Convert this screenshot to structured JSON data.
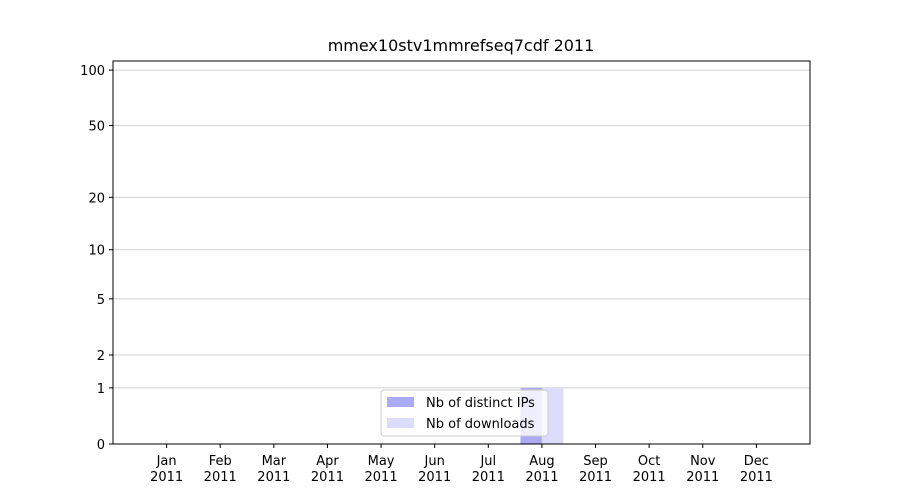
{
  "chart_data": {
    "type": "bar",
    "title": "mmex10stv1mmrefseq7cdf 2011",
    "categories": [
      "Jan 2011",
      "Feb 2011",
      "Mar 2011",
      "Apr 2011",
      "May 2011",
      "Jun 2011",
      "Jul 2011",
      "Aug 2011",
      "Sep 2011",
      "Oct 2011",
      "Nov 2011",
      "Dec 2011"
    ],
    "series": [
      {
        "name": "Nb of distinct IPs",
        "color": "#aaaaf5",
        "values": [
          0,
          0,
          0,
          0,
          0,
          0,
          0,
          1,
          0,
          0,
          0,
          0
        ]
      },
      {
        "name": "Nb of downloads",
        "color": "#dcdcfc",
        "values": [
          0,
          0,
          0,
          0,
          0,
          0,
          0,
          1,
          0,
          0,
          0,
          0
        ]
      }
    ],
    "yscale": "symlog",
    "ylim": [
      0,
      112
    ],
    "yticks": [
      0,
      1,
      2,
      5,
      10,
      20,
      50,
      100
    ],
    "grid": true,
    "legend": "lower center"
  }
}
